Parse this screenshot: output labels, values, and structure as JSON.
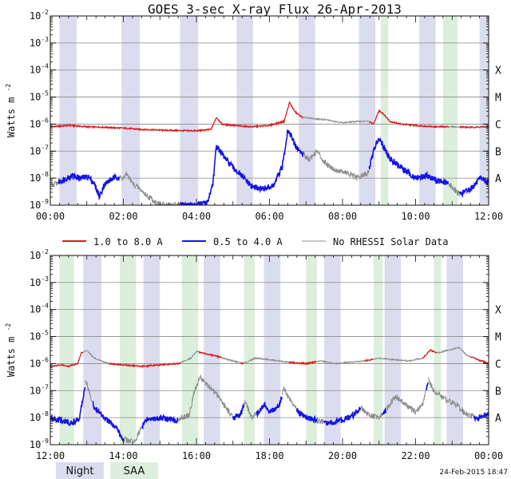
{
  "title": "GOES 3-sec X-ray Flux   26-Apr-2013",
  "footer_date": "24-Feb-2015 18:47",
  "legend": {
    "items": [
      {
        "label": "1.0 to 8.0 A",
        "color": "#d81e1e"
      },
      {
        "label": "0.5 to 4.0 A",
        "color": "#1414e6"
      },
      {
        "label": "No RHESSI Solar Data",
        "color": "#8c8c8c"
      }
    ]
  },
  "shading_legend": {
    "night": {
      "label": "Night",
      "color": "#dcdcef"
    },
    "saa": {
      "label": "SAA",
      "color": "#dcefdc"
    }
  },
  "chart_data": [
    {
      "type": "line",
      "ylabel": "Watts m",
      "ylabel_exponent": "-2",
      "yscale": "log",
      "ylim": [
        1e-09,
        0.01
      ],
      "xlim": [
        0,
        12
      ],
      "ytick_labels": [
        {
          "base": "10",
          "exp": "-9"
        },
        {
          "base": "10",
          "exp": "-8"
        },
        {
          "base": "10",
          "exp": "-7"
        },
        {
          "base": "10",
          "exp": "-6"
        },
        {
          "base": "10",
          "exp": "-5"
        },
        {
          "base": "10",
          "exp": "-4"
        },
        {
          "base": "10",
          "exp": "-3"
        },
        {
          "base": "10",
          "exp": "-2"
        }
      ],
      "class_labels": [
        {
          "label": "A",
          "exp": -8
        },
        {
          "label": "B",
          "exp": -7
        },
        {
          "label": "C",
          "exp": -6
        },
        {
          "label": "M",
          "exp": -5
        },
        {
          "label": "X",
          "exp": -4
        }
      ],
      "xticks": [
        {
          "value": 0,
          "label": "00:00"
        },
        {
          "value": 2,
          "label": "02:00"
        },
        {
          "value": 4,
          "label": "04:00"
        },
        {
          "value": 6,
          "label": "06:00"
        },
        {
          "value": 8,
          "label": "08:00"
        },
        {
          "value": 10,
          "label": "10:00"
        },
        {
          "value": 12,
          "label": "12:00"
        }
      ],
      "night": [
        [
          0.25,
          0.72
        ],
        [
          1.95,
          2.45
        ],
        [
          3.55,
          4.05
        ],
        [
          5.1,
          5.55
        ],
        [
          6.8,
          7.25
        ],
        [
          8.45,
          8.9
        ],
        [
          10.1,
          10.55
        ],
        [
          11.75,
          12.0
        ]
      ],
      "saa": [
        [
          9.05,
          9.25
        ],
        [
          10.75,
          11.15
        ]
      ],
      "series": [
        {
          "name": "1.0 to 8.0 A",
          "color": "#d81e1e",
          "points": [
            [
              0,
              -6.1
            ],
            [
              0.5,
              -6.05
            ],
            [
              1,
              -6.1
            ],
            [
              1.5,
              -6.12
            ],
            [
              2,
              -6.15
            ],
            [
              2.5,
              -6.2
            ],
            [
              3,
              -6.22
            ],
            [
              3.5,
              -6.24
            ],
            [
              4,
              -6.25
            ],
            [
              4.4,
              -6.2
            ],
            [
              4.55,
              -5.75
            ],
            [
              4.7,
              -6.0
            ],
            [
              5,
              -6.05
            ],
            [
              5.5,
              -6.1
            ],
            [
              6,
              -6.05
            ],
            [
              6.4,
              -5.9
            ],
            [
              6.55,
              -5.2
            ],
            [
              6.7,
              -5.55
            ],
            [
              6.9,
              -5.75
            ],
            [
              7.2,
              -5.8
            ],
            [
              7.6,
              -5.85
            ],
            [
              8,
              -5.95
            ],
            [
              8.4,
              -5.9
            ],
            [
              8.7,
              -5.9
            ],
            [
              8.85,
              -6.0
            ],
            [
              9.0,
              -5.5
            ],
            [
              9.1,
              -5.6
            ],
            [
              9.3,
              -5.9
            ],
            [
              9.6,
              -6.0
            ],
            [
              10,
              -6.05
            ],
            [
              10.5,
              -6.1
            ],
            [
              11,
              -6.1
            ],
            [
              11.5,
              -6.12
            ],
            [
              12,
              -6.1
            ]
          ],
          "gaps": [
            [
              6.92,
              8.72
            ],
            [
              10.9,
              11.2
            ]
          ]
        },
        {
          "name": "0.5 to 4.0 A",
          "color": "#1414e6",
          "points": [
            [
              0,
              -8.3
            ],
            [
              0.3,
              -8.1
            ],
            [
              0.6,
              -7.9
            ],
            [
              0.8,
              -8.0
            ],
            [
              1.05,
              -7.95
            ],
            [
              1.2,
              -8.2
            ],
            [
              1.35,
              -8.7
            ],
            [
              1.45,
              -8.3
            ],
            [
              1.6,
              -8.1
            ],
            [
              1.8,
              -7.95
            ],
            [
              2.0,
              -8.0
            ],
            [
              2.1,
              -7.85
            ],
            [
              2.25,
              -8.2
            ],
            [
              2.45,
              -8.4
            ],
            [
              2.6,
              -8.6
            ],
            [
              2.8,
              -8.8
            ],
            [
              3.0,
              -9.0
            ],
            [
              3.5,
              -9.0
            ],
            [
              4.0,
              -9.0
            ],
            [
              4.3,
              -8.9
            ],
            [
              4.45,
              -8.2
            ],
            [
              4.55,
              -6.8
            ],
            [
              4.65,
              -7.0
            ],
            [
              4.8,
              -7.3
            ],
            [
              5.0,
              -7.6
            ],
            [
              5.3,
              -8.0
            ],
            [
              5.5,
              -8.3
            ],
            [
              5.8,
              -8.4
            ],
            [
              6.1,
              -8.3
            ],
            [
              6.35,
              -7.6
            ],
            [
              6.5,
              -6.2
            ],
            [
              6.6,
              -6.45
            ],
            [
              6.7,
              -6.8
            ],
            [
              6.9,
              -7.1
            ],
            [
              7.1,
              -7.3
            ],
            [
              7.3,
              -7.0
            ],
            [
              7.5,
              -7.4
            ],
            [
              7.8,
              -7.7
            ],
            [
              8.1,
              -7.8
            ],
            [
              8.4,
              -8.0
            ],
            [
              8.7,
              -7.8
            ],
            [
              8.85,
              -7.0
            ],
            [
              9.0,
              -6.5
            ],
            [
              9.15,
              -6.9
            ],
            [
              9.3,
              -7.3
            ],
            [
              9.5,
              -7.5
            ],
            [
              9.8,
              -7.8
            ],
            [
              10.0,
              -8.0
            ],
            [
              10.3,
              -7.9
            ],
            [
              10.6,
              -8.1
            ],
            [
              10.9,
              -8.2
            ],
            [
              11.2,
              -8.6
            ],
            [
              11.5,
              -8.4
            ],
            [
              11.8,
              -8.0
            ],
            [
              12.0,
              -8.2
            ]
          ],
          "gaps": [
            [
              0.0,
              0.22
            ],
            [
              1.9,
              3.55
            ],
            [
              6.92,
              8.72
            ],
            [
              10.9,
              11.2
            ]
          ]
        }
      ]
    },
    {
      "type": "line",
      "ylabel": "Watts m",
      "ylabel_exponent": "-2",
      "yscale": "log",
      "ylim": [
        1e-09,
        0.01
      ],
      "xlim": [
        12,
        24
      ],
      "ytick_labels": [
        {
          "base": "10",
          "exp": "-9"
        },
        {
          "base": "10",
          "exp": "-8"
        },
        {
          "base": "10",
          "exp": "-7"
        },
        {
          "base": "10",
          "exp": "-6"
        },
        {
          "base": "10",
          "exp": "-5"
        },
        {
          "base": "10",
          "exp": "-4"
        },
        {
          "base": "10",
          "exp": "-3"
        },
        {
          "base": "10",
          "exp": "-2"
        }
      ],
      "class_labels": [
        {
          "label": "A",
          "exp": -8
        },
        {
          "label": "B",
          "exp": -7
        },
        {
          "label": "C",
          "exp": -6
        },
        {
          "label": "M",
          "exp": -5
        },
        {
          "label": "X",
          "exp": -4
        }
      ],
      "xticks": [
        {
          "value": 12,
          "label": "12:00"
        },
        {
          "value": 14,
          "label": "14:00"
        },
        {
          "value": 16,
          "label": "16:00"
        },
        {
          "value": 18,
          "label": "18:00"
        },
        {
          "value": 20,
          "label": "20:00"
        },
        {
          "value": 22,
          "label": "22:00"
        },
        {
          "value": 24,
          "label": "00:00"
        }
      ],
      "night": [
        [
          12.9,
          13.4
        ],
        [
          14.55,
          15.0
        ],
        [
          16.2,
          16.65
        ],
        [
          17.85,
          18.3
        ],
        [
          19.5,
          19.95
        ],
        [
          21.15,
          21.6
        ],
        [
          22.85,
          23.3
        ]
      ],
      "saa": [
        [
          12.25,
          12.65
        ],
        [
          13.9,
          14.35
        ],
        [
          15.6,
          16.05
        ],
        [
          17.3,
          17.6
        ],
        [
          19.0,
          19.3
        ],
        [
          20.85,
          21.1
        ],
        [
          22.5,
          22.7
        ]
      ],
      "series": [
        {
          "name": "1.0 to 8.0 A",
          "color": "#d81e1e",
          "points": [
            [
              12.0,
              -6.1
            ],
            [
              12.3,
              -6.05
            ],
            [
              12.5,
              -6.1
            ],
            [
              12.75,
              -6.0
            ],
            [
              12.85,
              -5.6
            ],
            [
              13.0,
              -5.5
            ],
            [
              13.2,
              -5.8
            ],
            [
              13.6,
              -6.0
            ],
            [
              14.0,
              -6.05
            ],
            [
              14.5,
              -6.1
            ],
            [
              15.0,
              -6.05
            ],
            [
              15.5,
              -6.0
            ],
            [
              15.85,
              -5.8
            ],
            [
              16.0,
              -5.55
            ],
            [
              16.3,
              -5.65
            ],
            [
              16.6,
              -5.75
            ],
            [
              17.0,
              -5.9
            ],
            [
              17.3,
              -6.0
            ],
            [
              17.6,
              -5.8
            ],
            [
              18.0,
              -5.85
            ],
            [
              18.5,
              -5.95
            ],
            [
              19.0,
              -6.0
            ],
            [
              19.4,
              -5.9
            ],
            [
              19.8,
              -6.0
            ],
            [
              20.2,
              -5.95
            ],
            [
              20.6,
              -5.9
            ],
            [
              21.0,
              -5.8
            ],
            [
              21.4,
              -5.85
            ],
            [
              21.8,
              -5.9
            ],
            [
              22.2,
              -5.8
            ],
            [
              22.4,
              -5.5
            ],
            [
              22.6,
              -5.6
            ],
            [
              22.9,
              -5.5
            ],
            [
              23.2,
              -5.4
            ],
            [
              23.4,
              -5.7
            ],
            [
              23.8,
              -5.9
            ],
            [
              24.0,
              -6.0
            ]
          ],
          "gaps": [
            [
              12.9,
              13.6
            ],
            [
              15.55,
              16.05
            ],
            [
              16.7,
              17.2
            ],
            [
              17.3,
              18.5
            ],
            [
              19.3,
              20.6
            ],
            [
              20.85,
              22.2
            ],
            [
              22.6,
              23.5
            ]
          ]
        },
        {
          "name": "0.5 to 4.0 A",
          "color": "#1414e6",
          "points": [
            [
              12.0,
              -8.0
            ],
            [
              12.3,
              -8.1
            ],
            [
              12.6,
              -8.2
            ],
            [
              12.8,
              -8.0
            ],
            [
              12.9,
              -7.2
            ],
            [
              12.97,
              -6.6
            ],
            [
              13.05,
              -7.0
            ],
            [
              13.2,
              -7.6
            ],
            [
              13.5,
              -8.0
            ],
            [
              13.8,
              -8.4
            ],
            [
              14.0,
              -8.8
            ],
            [
              14.3,
              -8.9
            ],
            [
              14.6,
              -8.1
            ],
            [
              15.0,
              -8.0
            ],
            [
              15.4,
              -8.1
            ],
            [
              15.8,
              -7.9
            ],
            [
              15.95,
              -7.0
            ],
            [
              16.1,
              -6.5
            ],
            [
              16.3,
              -6.8
            ],
            [
              16.6,
              -7.2
            ],
            [
              16.9,
              -7.8
            ],
            [
              17.0,
              -8.0
            ],
            [
              17.2,
              -7.9
            ],
            [
              17.35,
              -7.4
            ],
            [
              17.5,
              -8.0
            ],
            [
              17.7,
              -7.8
            ],
            [
              17.85,
              -7.5
            ],
            [
              18.0,
              -7.8
            ],
            [
              18.25,
              -7.6
            ],
            [
              18.4,
              -6.9
            ],
            [
              18.55,
              -7.3
            ],
            [
              18.8,
              -7.8
            ],
            [
              19.0,
              -8.0
            ],
            [
              19.3,
              -8.1
            ],
            [
              19.6,
              -8.2
            ],
            [
              20.0,
              -8.1
            ],
            [
              20.3,
              -7.9
            ],
            [
              20.5,
              -7.6
            ],
            [
              20.7,
              -7.9
            ],
            [
              21.0,
              -8.0
            ],
            [
              21.2,
              -7.7
            ],
            [
              21.45,
              -7.2
            ],
            [
              21.7,
              -7.5
            ],
            [
              22.0,
              -7.8
            ],
            [
              22.2,
              -7.5
            ],
            [
              22.35,
              -6.6
            ],
            [
              22.5,
              -7.0
            ],
            [
              22.8,
              -7.3
            ],
            [
              23.1,
              -7.5
            ],
            [
              23.4,
              -7.9
            ],
            [
              23.7,
              -8.0
            ],
            [
              24.0,
              -7.9
            ]
          ],
          "gaps": [
            [
              12.95,
              13.15
            ],
            [
              14.0,
              14.5
            ],
            [
              15.5,
              17.0
            ],
            [
              17.3,
              17.65
            ],
            [
              18.35,
              18.75
            ],
            [
              19.3,
              19.5
            ],
            [
              20.5,
              21.1
            ],
            [
              21.2,
              22.3
            ],
            [
              22.35,
              23.6
            ]
          ]
        }
      ]
    }
  ]
}
